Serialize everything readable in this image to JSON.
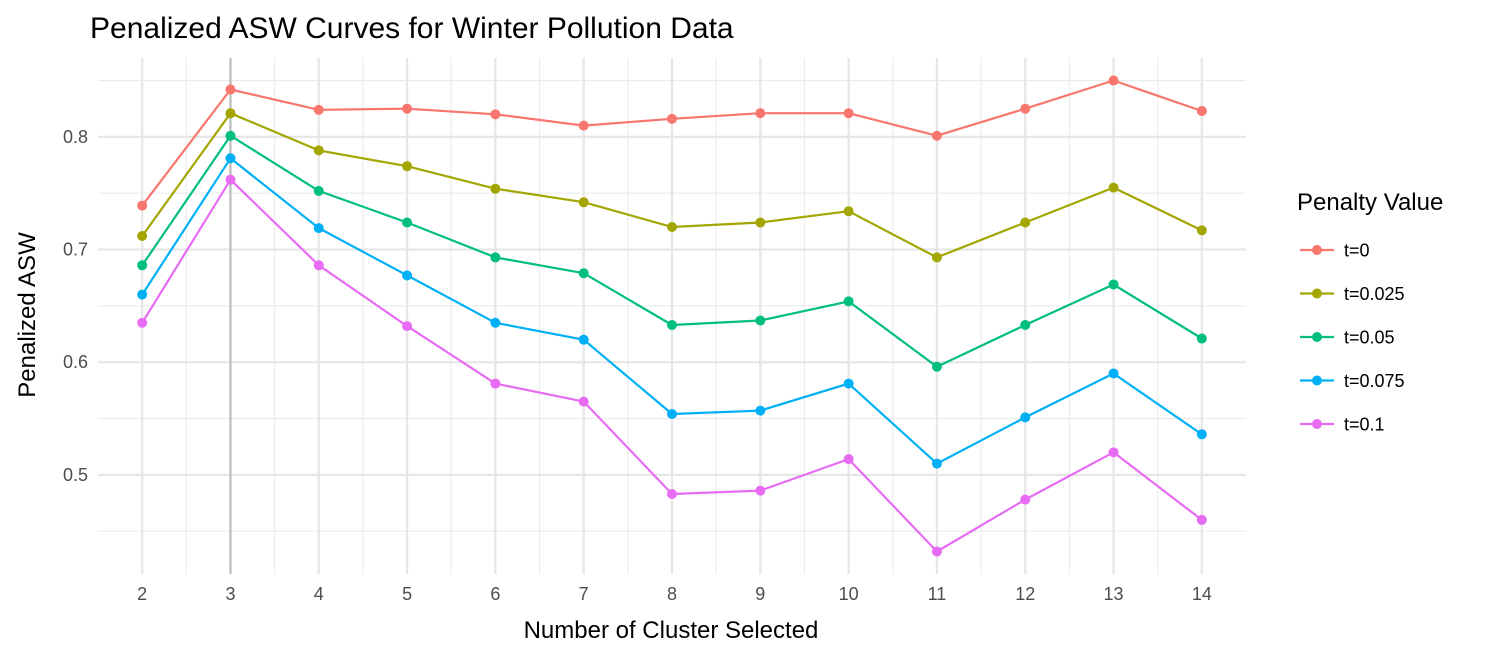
{
  "chart_data": {
    "type": "line",
    "title": "Penalized ASW Curves for Winter Pollution Data",
    "xlabel": "Number of Cluster Selected",
    "ylabel": "Penalized ASW",
    "x": [
      2,
      3,
      4,
      5,
      6,
      7,
      8,
      9,
      10,
      11,
      12,
      13,
      14
    ],
    "xlim": [
      1.5,
      14.5
    ],
    "ylim": [
      0.412,
      0.87
    ],
    "y_ticks": [
      0.5,
      0.6,
      0.7,
      0.8
    ],
    "y_tick_labels": [
      "0.5",
      "0.6",
      "0.7",
      "0.8"
    ],
    "x_tick_labels": [
      "2",
      "3",
      "4",
      "5",
      "6",
      "7",
      "8",
      "9",
      "10",
      "11",
      "12",
      "13",
      "14"
    ],
    "vline_x": 3,
    "grid": true,
    "legend": {
      "title": "Penalty Value",
      "position": "right"
    },
    "series": [
      {
        "name": "t=0",
        "color": "#F8766D",
        "values": [
          0.739,
          0.842,
          0.824,
          0.825,
          0.82,
          0.81,
          0.816,
          0.821,
          0.821,
          0.801,
          0.825,
          0.85,
          0.823
        ]
      },
      {
        "name": "t=0.025",
        "color": "#A3A500",
        "values": [
          0.712,
          0.821,
          0.788,
          0.774,
          0.754,
          0.742,
          0.72,
          0.724,
          0.734,
          0.693,
          0.724,
          0.755,
          0.717
        ]
      },
      {
        "name": "t=0.05",
        "color": "#00BF7D",
        "values": [
          0.686,
          0.801,
          0.752,
          0.724,
          0.693,
          0.679,
          0.633,
          0.637,
          0.654,
          0.596,
          0.633,
          0.669,
          0.621
        ]
      },
      {
        "name": "t=0.075",
        "color": "#00B0F6",
        "values": [
          0.66,
          0.781,
          0.719,
          0.677,
          0.635,
          0.62,
          0.554,
          0.557,
          0.581,
          0.51,
          0.551,
          0.59,
          0.536
        ]
      },
      {
        "name": "t=0.1",
        "color": "#E76BF3",
        "values": [
          0.635,
          0.762,
          0.686,
          0.632,
          0.581,
          0.565,
          0.483,
          0.486,
          0.514,
          0.432,
          0.478,
          0.52,
          0.46
        ]
      }
    ]
  }
}
